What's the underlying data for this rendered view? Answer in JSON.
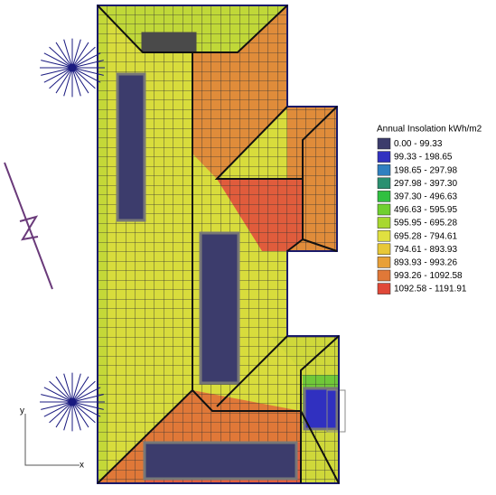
{
  "legend": {
    "title": "Annual Insolation kWh/m2",
    "entries": [
      {
        "label": "0.00 - 99.33",
        "color": "#3c3c6c"
      },
      {
        "label": "99.33 - 198.65",
        "color": "#3232c0"
      },
      {
        "label": "198.65 - 297.98",
        "color": "#3080c0"
      },
      {
        "label": "297.98 - 397.30",
        "color": "#2a9070"
      },
      {
        "label": "397.30 - 496.63",
        "color": "#30c040"
      },
      {
        "label": "496.63 - 595.95",
        "color": "#70d030"
      },
      {
        "label": "595.95 - 695.28",
        "color": "#a8d830"
      },
      {
        "label": "695.28 - 794.61",
        "color": "#e0e040"
      },
      {
        "label": "794.61 - 893.93",
        "color": "#e8c838"
      },
      {
        "label": "893.93 - 993.26",
        "color": "#e8a038"
      },
      {
        "label": "993.26 - 1092.58",
        "color": "#e07838"
      },
      {
        "label": "1092.58 - 1191.91",
        "color": "#e04838"
      }
    ]
  },
  "axes": {
    "x": "x",
    "y": "y"
  }
}
